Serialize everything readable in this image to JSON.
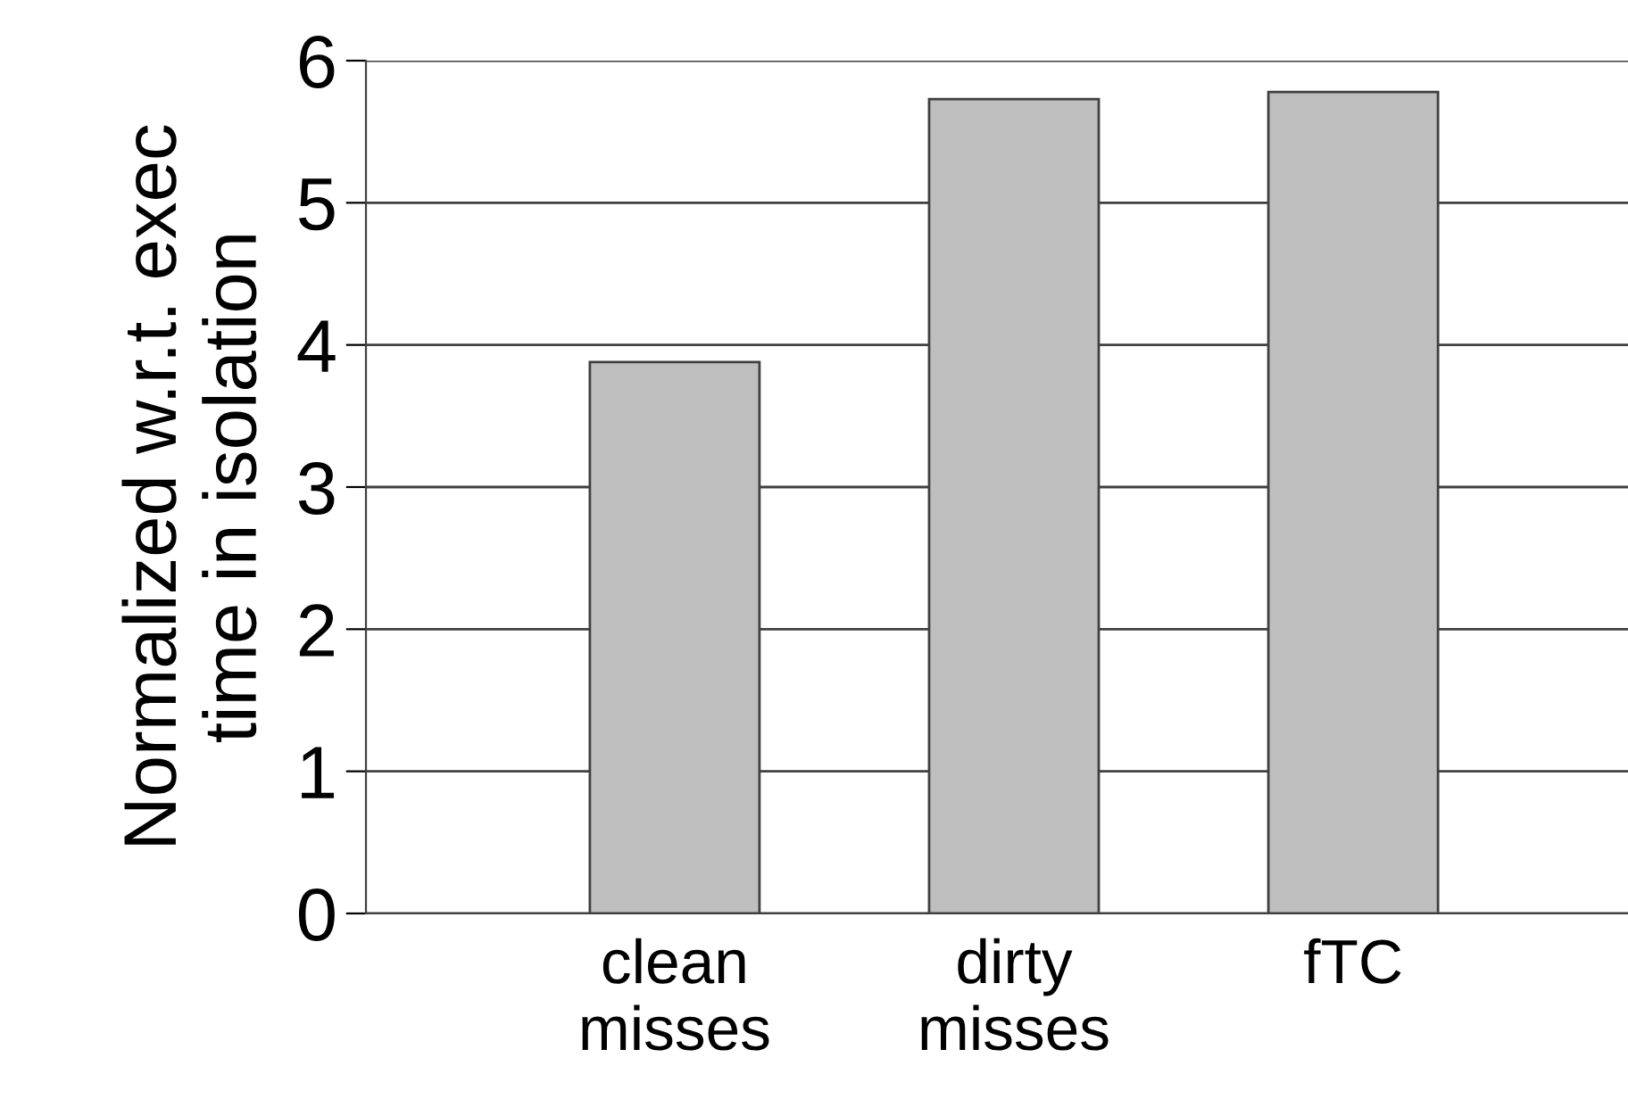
{
  "chart_data": {
    "type": "bar",
    "ylabel": "Normalized w.r.t. exec\ntime in isolation",
    "categories": [
      "clean\nmisses",
      "dirty\nmisses",
      "fTC"
    ],
    "values": [
      3.88,
      5.73,
      5.78
    ],
    "color": "#bebebe",
    "ylim": [
      0,
      6
    ],
    "yticks": [
      0,
      1,
      2,
      3,
      4,
      5,
      6
    ],
    "grid": "y"
  }
}
